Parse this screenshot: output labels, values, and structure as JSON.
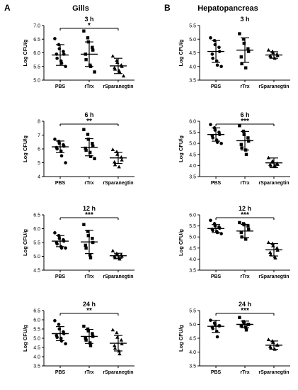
{
  "panel_labels": {
    "left": "A",
    "right": "B"
  },
  "panel_titles": {
    "left": "Gills",
    "right": "Hepatopancreas"
  },
  "chart_data": [
    {
      "type": "scatter",
      "panel": "A",
      "title": "3 h",
      "ylabel": "Log CFU/g",
      "ylim": [
        5.0,
        7.0
      ],
      "yticks": [
        "5.0",
        "5.5",
        "6.0",
        "6.5",
        "7.0"
      ],
      "categories": [
        "PBS",
        "rTrx",
        "rSparanegtin"
      ],
      "significance": "*",
      "groups": [
        {
          "name": "PBS",
          "marker": "circle",
          "mean": 5.92,
          "sd": 0.38,
          "values": [
            6.52,
            6.3,
            6.15,
            6.05,
            5.95,
            5.95,
            5.8,
            5.7,
            5.62,
            5.5
          ]
        },
        {
          "name": "rTrx",
          "marker": "square",
          "mean": 5.95,
          "sd": 0.45,
          "values": [
            6.8,
            6.55,
            6.4,
            6.2,
            6.1,
            5.95,
            5.75,
            5.55,
            5.5,
            5.3
          ]
        },
        {
          "name": "rSparanegtin",
          "marker": "triangle",
          "mean": 5.52,
          "sd": 0.28,
          "values": [
            5.88,
            5.72,
            5.65,
            5.55,
            5.5,
            5.45,
            5.4,
            5.35,
            5.3,
            5.15
          ]
        }
      ]
    },
    {
      "type": "scatter",
      "panel": "B",
      "title": "3 h",
      "ylabel": "Log CFU/g",
      "ylim": [
        3.5,
        5.5
      ],
      "yticks": [
        "3.5",
        "4.0",
        "4.5",
        "5.0",
        "5.5"
      ],
      "categories": [
        "PBS",
        "rTrx",
        "rSparanegtin"
      ],
      "significance": "",
      "groups": [
        {
          "name": "PBS",
          "marker": "circle",
          "mean": 4.55,
          "sd": 0.4,
          "values": [
            5.05,
            4.95,
            4.8,
            4.7,
            4.55,
            4.45,
            4.3,
            4.2,
            4.05,
            4.0
          ]
        },
        {
          "name": "rTrx",
          "marker": "square",
          "mean": 4.6,
          "sd": 0.45,
          "values": [
            5.2,
            5.0,
            4.85,
            4.65,
            4.55,
            4.35,
            4.1,
            3.95
          ]
        },
        {
          "name": "rSparanegtin",
          "marker": "triangle",
          "mean": 4.42,
          "sd": 0.12,
          "values": [
            4.6,
            4.55,
            4.5,
            4.45,
            4.4,
            4.4,
            4.35,
            4.3
          ]
        }
      ]
    },
    {
      "type": "scatter",
      "panel": "A",
      "title": "6 h",
      "ylabel": "Log CFU/g",
      "ylim": [
        4,
        8
      ],
      "yticks": [
        "4",
        "5",
        "6",
        "7",
        "8"
      ],
      "categories": [
        "PBS",
        "rTrx",
        "rSparanegtin"
      ],
      "significance": "**",
      "groups": [
        {
          "name": "PBS",
          "marker": "circle",
          "mean": 6.15,
          "sd": 0.42,
          "values": [
            6.7,
            6.55,
            6.4,
            6.3,
            6.2,
            6.1,
            6.0,
            5.85,
            5.5,
            5.0
          ]
        },
        {
          "name": "rTrx",
          "marker": "square",
          "mean": 6.12,
          "sd": 0.62,
          "values": [
            7.4,
            7.05,
            6.7,
            6.4,
            6.2,
            6.05,
            5.9,
            5.75,
            5.45,
            5.3
          ]
        },
        {
          "name": "rSparanegtin",
          "marker": "triangle",
          "mean": 5.35,
          "sd": 0.4,
          "values": [
            5.95,
            5.8,
            5.6,
            5.4,
            5.2,
            5.05,
            4.85,
            4.7
          ]
        }
      ]
    },
    {
      "type": "scatter",
      "panel": "B",
      "title": "6 h",
      "ylabel": "Log CFU/g",
      "ylim": [
        3.5,
        6.0
      ],
      "yticks": [
        "3.5",
        "4.0",
        "4.5",
        "5.0",
        "5.5",
        "6.0"
      ],
      "categories": [
        "PBS",
        "rTrx",
        "rSparanegtin"
      ],
      "significance": "***",
      "groups": [
        {
          "name": "PBS",
          "marker": "circle",
          "mean": 5.4,
          "sd": 0.3,
          "values": [
            5.85,
            5.7,
            5.6,
            5.5,
            5.4,
            5.35,
            5.25,
            5.15,
            5.05,
            5.0
          ]
        },
        {
          "name": "rTrx",
          "marker": "square",
          "mean": 5.12,
          "sd": 0.42,
          "values": [
            5.8,
            5.55,
            5.4,
            5.25,
            5.1,
            4.95,
            4.8,
            4.7,
            4.5
          ]
        },
        {
          "name": "rSparanegtin",
          "marker": "triangle",
          "mean": 4.12,
          "sd": 0.22,
          "values": [
            4.35,
            4.2,
            4.15,
            4.1,
            4.05,
            4.05,
            4.0,
            4.0,
            3.95
          ]
        }
      ]
    },
    {
      "type": "scatter",
      "panel": "A",
      "title": "12 h",
      "ylabel": "Log CFU/g",
      "ylim": [
        4.5,
        6.5
      ],
      "yticks": [
        "4.5",
        "5.0",
        "5.5",
        "6.0",
        "6.5"
      ],
      "categories": [
        "PBS",
        "rTrx",
        "rSparanegtin"
      ],
      "significance": "***",
      "groups": [
        {
          "name": "PBS",
          "marker": "circle",
          "mean": 5.55,
          "sd": 0.2,
          "values": [
            5.85,
            5.75,
            5.65,
            5.6,
            5.55,
            5.5,
            5.45,
            5.35,
            5.3,
            5.3
          ]
        },
        {
          "name": "rTrx",
          "marker": "square",
          "mean": 5.52,
          "sd": 0.42,
          "values": [
            6.15,
            5.9,
            5.75,
            5.65,
            5.5,
            5.4,
            5.3,
            5.05,
            4.95
          ]
        },
        {
          "name": "rSparanegtin",
          "marker": "triangle",
          "mean": 5.02,
          "sd": 0.09,
          "values": [
            5.2,
            5.1,
            5.05,
            5.05,
            5.0,
            5.0,
            4.95,
            4.95,
            4.9
          ]
        }
      ]
    },
    {
      "type": "scatter",
      "panel": "B",
      "title": "12 h",
      "ylabel": "Log CFU/g",
      "ylim": [
        3.5,
        6.0
      ],
      "yticks": [
        "3.5",
        "4.0",
        "4.5",
        "5.0",
        "5.5",
        "6.0"
      ],
      "categories": [
        "PBS",
        "rTrx",
        "rSparanegtin"
      ],
      "significance": "***",
      "groups": [
        {
          "name": "PBS",
          "marker": "circle",
          "mean": 5.38,
          "sd": 0.18,
          "values": [
            5.75,
            5.6,
            5.5,
            5.45,
            5.4,
            5.35,
            5.3,
            5.25,
            5.2,
            5.15
          ]
        },
        {
          "name": "rTrx",
          "marker": "square",
          "mean": 5.27,
          "sd": 0.3,
          "values": [
            5.65,
            5.6,
            5.55,
            5.5,
            5.35,
            5.2,
            5.0,
            4.9
          ]
        },
        {
          "name": "rSparanegtin",
          "marker": "triangle",
          "mean": 4.42,
          "sd": 0.28,
          "values": [
            4.75,
            4.7,
            4.6,
            4.5,
            4.4,
            4.3,
            4.2,
            4.1,
            4.05
          ]
        }
      ]
    },
    {
      "type": "scatter",
      "panel": "A",
      "title": "24 h",
      "ylabel": "Log CFU/g",
      "ylim": [
        3.5,
        6.5
      ],
      "yticks": [
        "3.5",
        "4.0",
        "4.5",
        "5.0",
        "5.5",
        "6.0",
        "6.5"
      ],
      "categories": [
        "PBS",
        "rTrx",
        "rSparanegtin"
      ],
      "significance": "**",
      "groups": [
        {
          "name": "PBS",
          "marker": "circle",
          "mean": 5.25,
          "sd": 0.38,
          "values": [
            5.95,
            5.75,
            5.5,
            5.35,
            5.25,
            5.15,
            5.05,
            5.0,
            4.85,
            4.7
          ]
        },
        {
          "name": "rTrx",
          "marker": "square",
          "mean": 5.1,
          "sd": 0.38,
          "values": [
            5.65,
            5.5,
            5.4,
            5.25,
            5.1,
            5.0,
            4.9,
            4.75,
            4.6
          ]
        },
        {
          "name": "rSparanegtin",
          "marker": "triangle",
          "mean": 4.73,
          "sd": 0.42,
          "values": [
            5.45,
            5.3,
            5.05,
            4.9,
            4.7,
            4.6,
            4.45,
            4.3,
            4.15
          ]
        }
      ]
    },
    {
      "type": "scatter",
      "panel": "B",
      "title": "24 h",
      "ylabel": "Log CFU/g",
      "ylim": [
        3.5,
        5.5
      ],
      "yticks": [
        "3.5",
        "4.0",
        "4.5",
        "5.0",
        "5.5"
      ],
      "categories": [
        "PBS",
        "rTrx",
        "rSparanegtin"
      ],
      "significance": "***",
      "groups": [
        {
          "name": "PBS",
          "marker": "circle",
          "mean": 4.93,
          "sd": 0.22,
          "values": [
            5.15,
            5.05,
            5.0,
            4.95,
            4.95,
            4.9,
            4.85,
            4.75,
            4.55
          ]
        },
        {
          "name": "rTrx",
          "marker": "square",
          "mean": 5.0,
          "sd": 0.12,
          "values": [
            5.25,
            5.1,
            5.05,
            5.0,
            5.0,
            4.95,
            4.95,
            4.9,
            4.8
          ]
        },
        {
          "name": "rSparanegtin",
          "marker": "triangle",
          "mean": 4.25,
          "sd": 0.15,
          "values": [
            4.45,
            4.4,
            4.35,
            4.25,
            4.25,
            4.2,
            4.15,
            4.1
          ]
        }
      ]
    }
  ]
}
